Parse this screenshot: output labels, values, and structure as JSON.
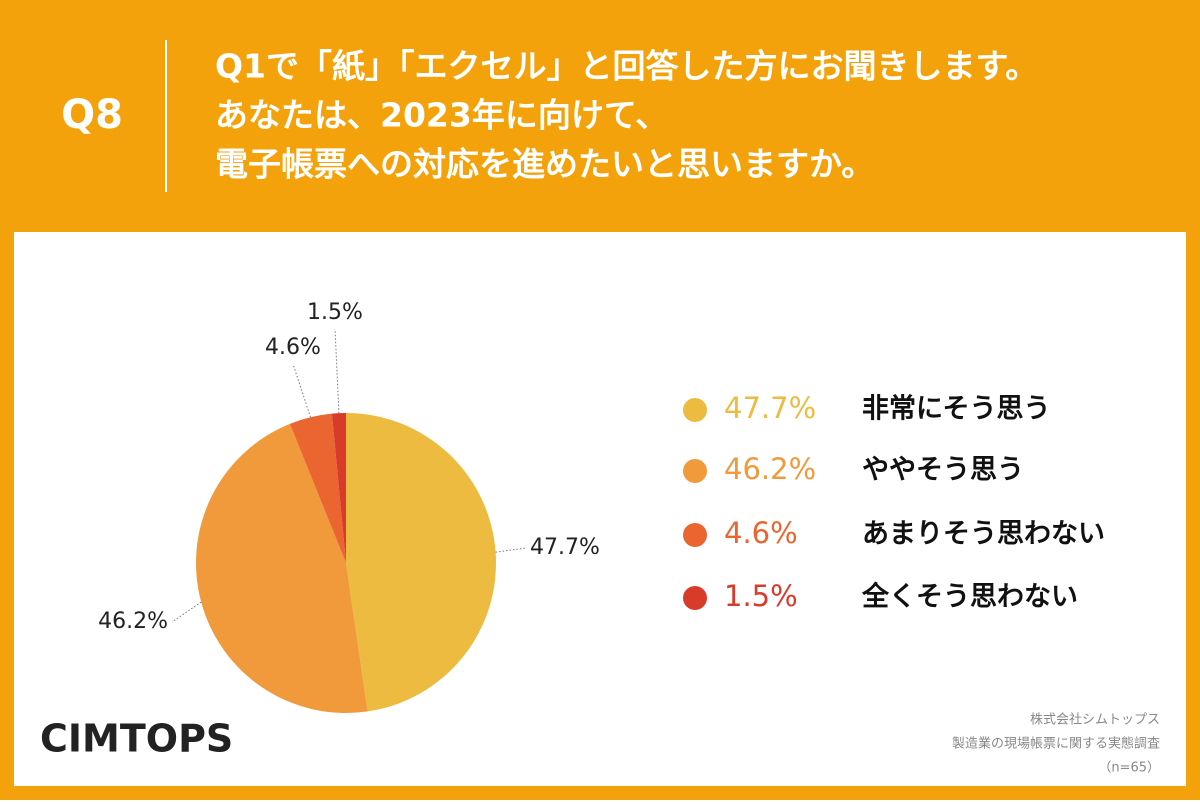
{
  "chart_data": {
    "type": "pie",
    "question": "Q8",
    "title": [
      "Q1で「紙」「エクセル」と回答した方にお聞きします。",
      "あなたは、2023年に向けて、",
      "電子帳票への対応を進めたいと思いますか。"
    ],
    "categories": [
      "非常にそう思う",
      "ややそう思う",
      "あまりそう思わない",
      "全くそう思わない"
    ],
    "values": [
      47.7,
      46.2,
      4.6,
      1.5
    ],
    "value_labels": [
      "47.7%",
      "46.2%",
      "4.6%",
      "1.5%"
    ],
    "colors": [
      "#EDBB3F",
      "#F09A3B",
      "#EB6531",
      "#D93B2B"
    ],
    "logo": "CIMTOPS",
    "source": [
      "株式会社シムトップス",
      "製造業の現場帳票に関する実態調査",
      "（n=65）"
    ]
  }
}
